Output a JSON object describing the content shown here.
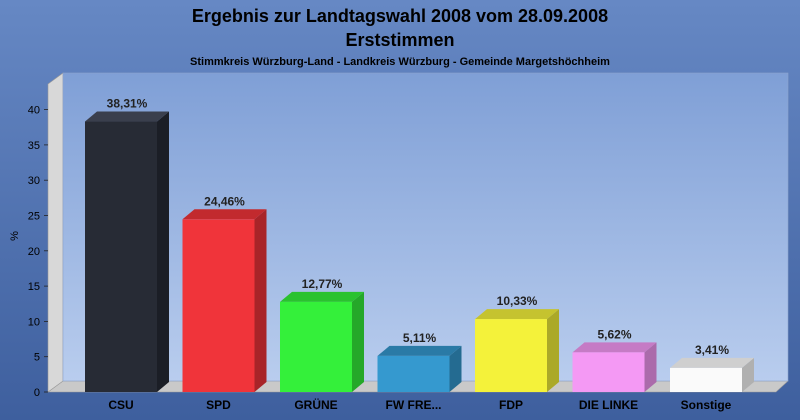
{
  "chart_data": {
    "type": "bar",
    "title": "Ergebnis zur Landtagswahl 2008 vom 28.09.2008",
    "title2": "Erststimmen",
    "subtitle": "Stimmkreis Würzburg-Land - Landkreis Würzburg - Gemeinde Margetshöchheim",
    "ylabel": "%",
    "xlabel": "",
    "ylim": [
      0,
      43
    ],
    "yticks": [
      "0",
      "5",
      "10",
      "15",
      "20",
      "25",
      "30",
      "35",
      "40"
    ],
    "grid": false,
    "legend": "none",
    "categories": [
      "CSU",
      "SPD",
      "GRÜNE",
      "FW FRE...",
      "FDP",
      "DIE LINKE",
      "Sonstige"
    ],
    "values": [
      38.31,
      24.46,
      12.77,
      5.11,
      10.33,
      5.62,
      3.41
    ],
    "value_labels": [
      "38,31%",
      "24,46%",
      "12,77%",
      "5,11%",
      "10,33%",
      "5,62%",
      "3,41%"
    ],
    "colors": [
      "#272b35",
      "#f0343a",
      "#34f03a",
      "#3599cf",
      "#f4f23a",
      "#f499f4",
      "#fafafa"
    ],
    "side_colors": [
      "#1b1e26",
      "#a82428",
      "#25a829",
      "#246b91",
      "#aba928",
      "#ab6bab",
      "#b0b0b0"
    ],
    "top_colors": [
      "#3a3f4d",
      "#c22a2e",
      "#2ac22f",
      "#2a7aa6",
      "#c5c32f",
      "#c57bc5",
      "#cfcfcf"
    ]
  }
}
